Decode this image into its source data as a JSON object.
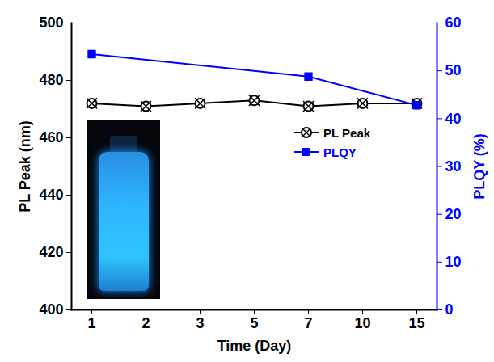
{
  "chart_data": {
    "type": "line",
    "categories": [
      "1",
      "2",
      "3",
      "5",
      "7",
      "10",
      "15"
    ],
    "x_label": "Time (Day)",
    "y_label": "PL Peak (nm)",
    "y2_label": "PLQY (%)",
    "ylim": [
      400,
      500
    ],
    "yticks": [
      400,
      420,
      440,
      460,
      480,
      500
    ],
    "y2lim": [
      0,
      60
    ],
    "y2ticks": [
      0,
      10,
      20,
      30,
      40,
      50,
      60
    ],
    "legend": "right",
    "series": [
      {
        "name": "PL Peak",
        "color": "#000000",
        "marker": "circle-x",
        "values": [
          472,
          471,
          472,
          473,
          471,
          472,
          472
        ]
      },
      {
        "name": "PLQY",
        "color": "#0000ff",
        "marker": "square",
        "axis": "y2",
        "x": [
          "1",
          "7",
          "15"
        ],
        "values": [
          53.5,
          48.8,
          42.8
        ]
      }
    ]
  }
}
